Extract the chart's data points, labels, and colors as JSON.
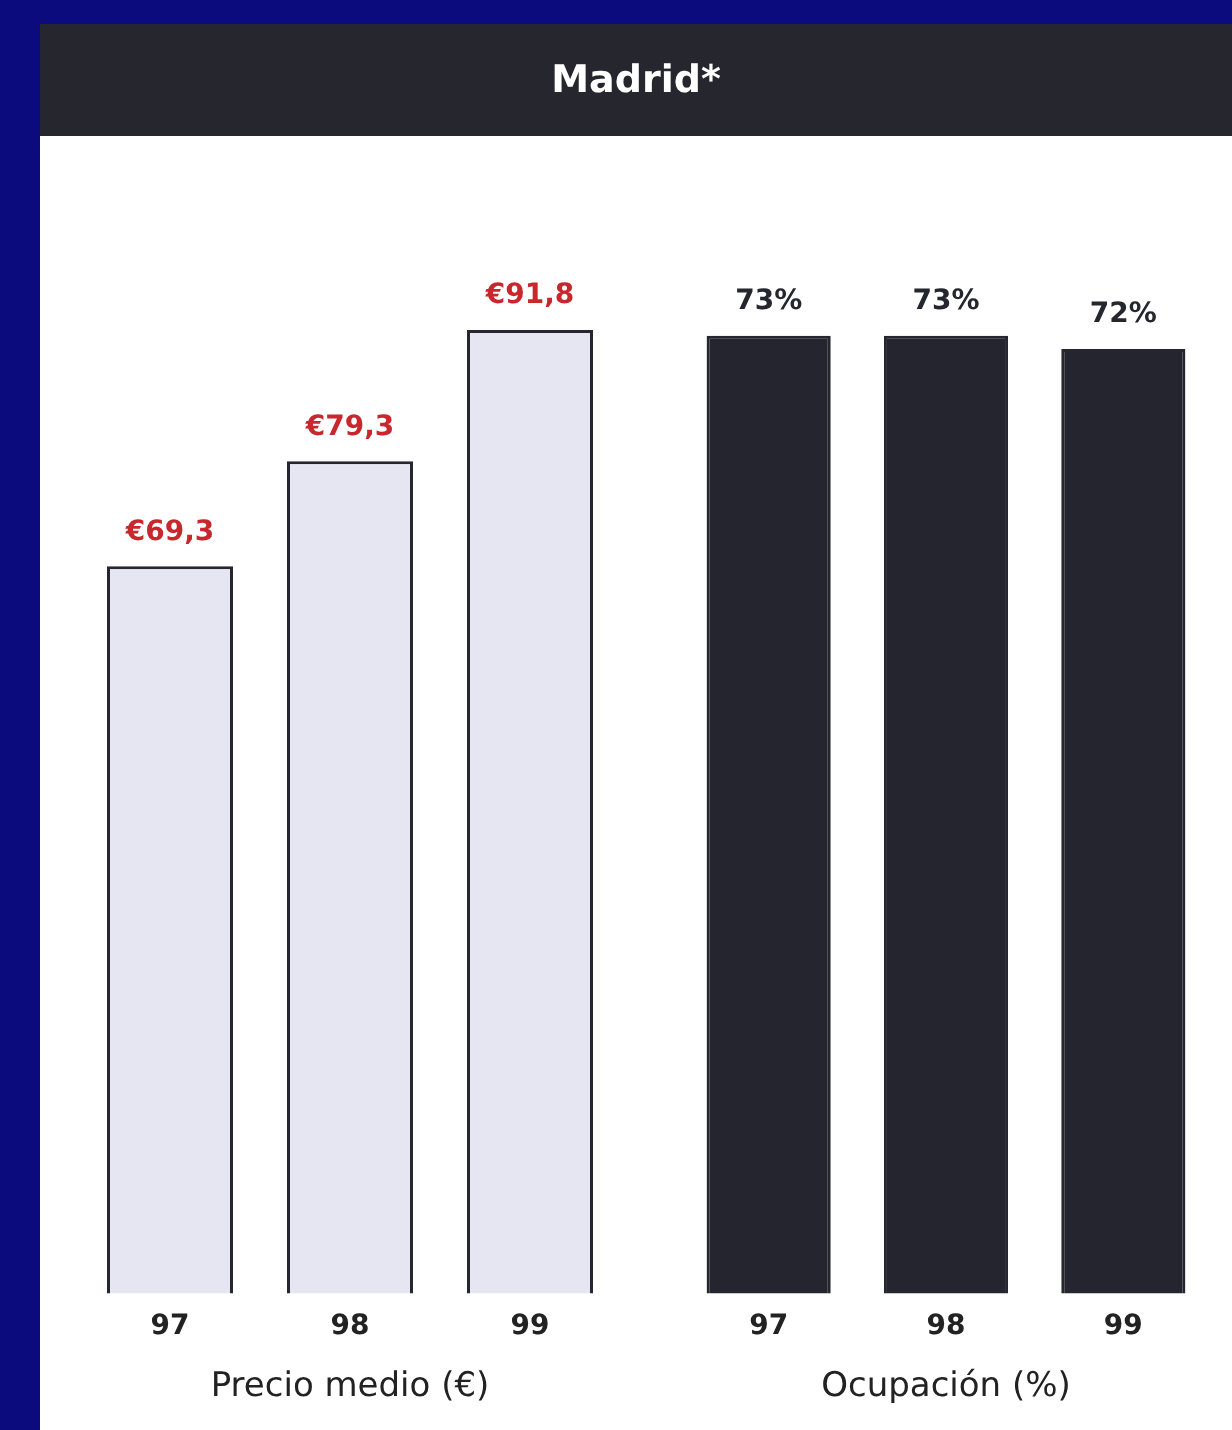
{
  "chart_data": [
    {
      "type": "bar",
      "title": "Madrid*",
      "xlabel": "Precio medio (€)",
      "categories": [
        "97",
        "98",
        "99"
      ],
      "values": [
        69.3,
        79.3,
        91.8
      ],
      "color": "#e6e6f2",
      "value_labels": [
        "€69,3",
        "€79,3",
        "€91,8"
      ]
    },
    {
      "type": "bar",
      "xlabel": "Ocupación (%)",
      "categories": [
        "97",
        "98",
        "99"
      ],
      "values": [
        73,
        73,
        72
      ],
      "color": "#25252f",
      "value_labels": [
        "73%",
        "73%",
        "72%"
      ]
    }
  ]
}
